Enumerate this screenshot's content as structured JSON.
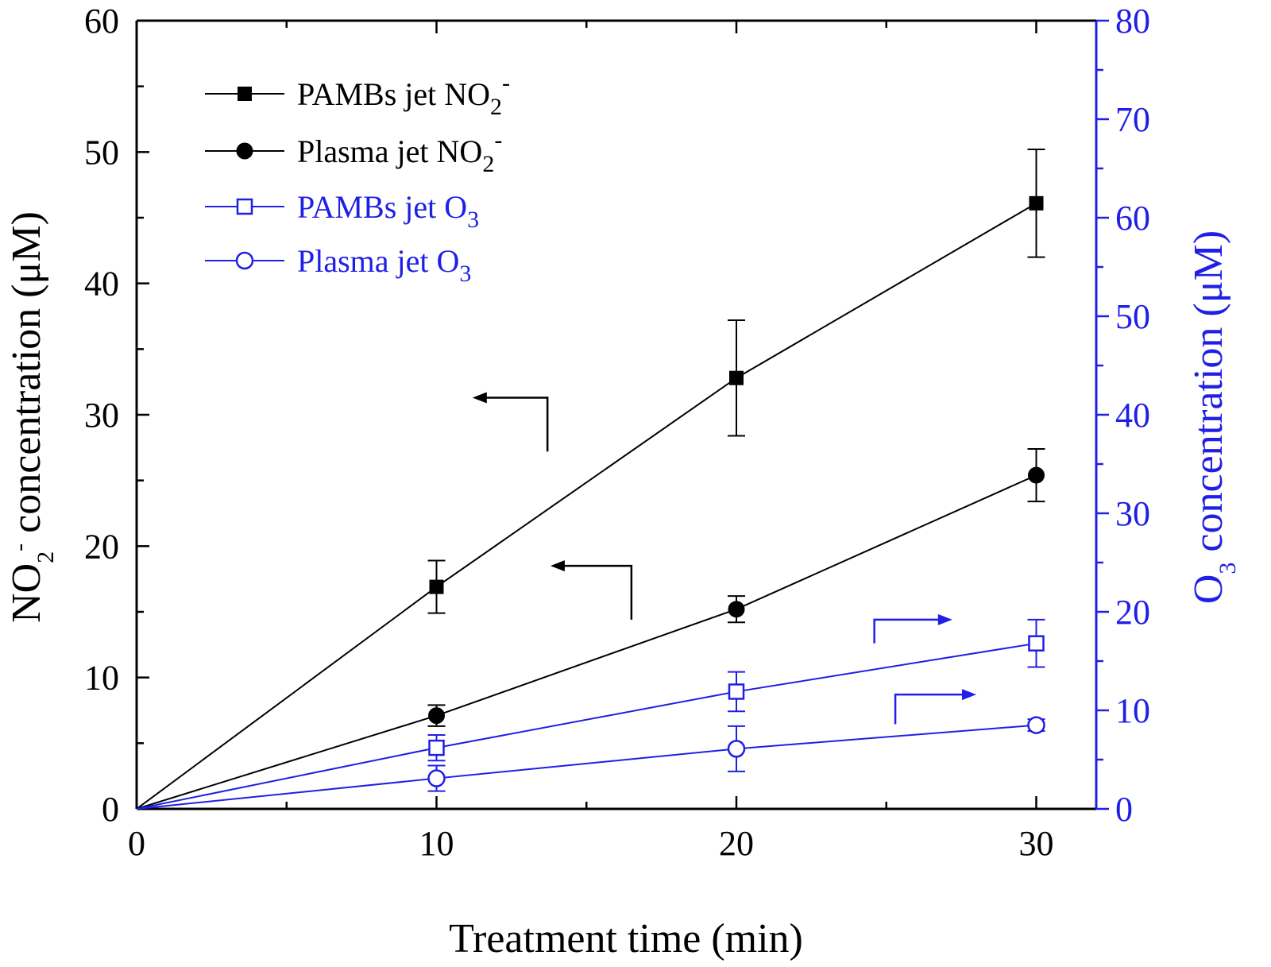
{
  "chart_data": {
    "type": "line",
    "xlabel": "Treatment time (min)",
    "ylabel_left": {
      "prefix": "NO",
      "sub": "2",
      "sup": "-",
      "rest": " concentration (μM)"
    },
    "ylabel_right": {
      "prefix": "O",
      "sub": "3",
      "rest": " concentration (μM)"
    },
    "xlim": [
      0,
      32
    ],
    "ylim_left": [
      0,
      60
    ],
    "ylim_right": [
      0,
      80
    ],
    "x_ticks": [
      "0",
      "10",
      "20",
      "30"
    ],
    "y_ticks_left": [
      "0",
      "10",
      "20",
      "30",
      "40",
      "50",
      "60"
    ],
    "y_ticks_right": [
      "0",
      "10",
      "20",
      "30",
      "40",
      "50",
      "60",
      "70",
      "80"
    ],
    "grid": false,
    "legend_position": "top-left",
    "colors": {
      "no2": "#000000",
      "o3": "#1f1fe6"
    },
    "series": [
      {
        "name": "PAMBs jet NO2-",
        "label": {
          "main": "PAMBs jet NO",
          "sub": "2",
          "sup": "-"
        },
        "axis": "left",
        "marker": "filled-square",
        "x": [
          0,
          10,
          20,
          30
        ],
        "y": [
          0,
          16.9,
          32.8,
          46.1
        ],
        "err": [
          0,
          2.0,
          4.4,
          4.1
        ]
      },
      {
        "name": "Plasma jet NO2-",
        "label": {
          "main": "Plasma jet NO",
          "sub": "2",
          "sup": "-"
        },
        "axis": "left",
        "marker": "filled-circle",
        "x": [
          0,
          10,
          20,
          30
        ],
        "y": [
          0,
          7.1,
          15.2,
          25.4
        ],
        "err": [
          0,
          0.8,
          1.0,
          2.0
        ]
      },
      {
        "name": "PAMBs jet O3",
        "label": {
          "main": "PAMBs jet O",
          "sub": "3",
          "sup": ""
        },
        "axis": "right",
        "marker": "open-square",
        "x": [
          0,
          10,
          20,
          30
        ],
        "y": [
          0,
          6.2,
          11.9,
          16.8
        ],
        "err": [
          0,
          1.3,
          2.0,
          2.4
        ]
      },
      {
        "name": "Plasma jet O3",
        "label": {
          "main": "Plasma jet O",
          "sub": "3",
          "sup": ""
        },
        "axis": "right",
        "marker": "open-circle",
        "x": [
          0,
          10,
          20,
          30
        ],
        "y": [
          0,
          3.1,
          6.1,
          8.5
        ],
        "err": [
          0,
          1.3,
          2.3,
          0.6
        ]
      }
    ],
    "annotations": [
      {
        "type": "axis-arrow",
        "points_to": "left",
        "series": "PAMBs jet NO2-",
        "x": 13.7,
        "y_left": 27.2,
        "corner_y_left": 31.3,
        "tip_x": 11.2
      },
      {
        "type": "axis-arrow",
        "points_to": "left",
        "series": "Plasma jet NO2-",
        "x": 16.5,
        "y_left": 14.4,
        "corner_y_left": 18.5,
        "tip_x": 13.8
      },
      {
        "type": "axis-arrow",
        "points_to": "right",
        "series": "PAMBs jet O3",
        "x": 24.6,
        "y_right": 16.8,
        "corner_y_right": 19.2,
        "tip_x": 27.2
      },
      {
        "type": "axis-arrow",
        "points_to": "right",
        "series": "Plasma jet O3",
        "x": 25.3,
        "y_right": 8.6,
        "corner_y_right": 11.6,
        "tip_x": 28.0
      }
    ]
  }
}
